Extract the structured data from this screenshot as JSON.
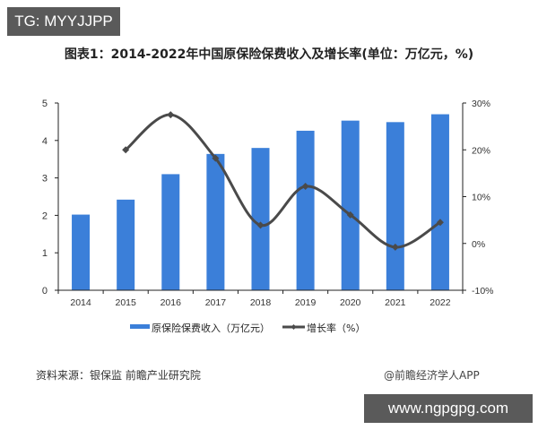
{
  "watermark_top": "TG: MYYJJPP",
  "watermark_bottom": "www.ngpgpg.com",
  "source": "资料来源：银保监 前瞻产业研究院",
  "credit": "@前瞻经济学人APP",
  "chart_data": {
    "type": "bar",
    "title": "图表1：2014-2022年中国原保险保费收入及增长率(单位：万亿元，%)",
    "categories": [
      "2014",
      "2015",
      "2016",
      "2017",
      "2018",
      "2019",
      "2020",
      "2021",
      "2022"
    ],
    "series": [
      {
        "name": "原保险保费收入（万亿元）",
        "type": "bar",
        "axis": "left",
        "color": "#3b7fd9",
        "values": [
          2.02,
          2.42,
          3.1,
          3.64,
          3.8,
          4.26,
          4.53,
          4.49,
          4.7
        ]
      },
      {
        "name": "增长率（%）",
        "type": "line",
        "axis": "right",
        "color": "#4a4a4a",
        "values": [
          null,
          20.0,
          27.5,
          18.2,
          3.9,
          12.2,
          6.1,
          -0.8,
          4.5
        ]
      }
    ],
    "left_axis": {
      "ylim": [
        0,
        5
      ],
      "ticks": [
        "0",
        "1",
        "2",
        "3",
        "4",
        "5"
      ]
    },
    "right_axis": {
      "ylim": [
        -10,
        30
      ],
      "ticks": [
        "-10%",
        "0%",
        "10%",
        "20%",
        "30%"
      ]
    },
    "xlabel": "",
    "ylabel": "",
    "grid": false,
    "legend_position": "bottom"
  }
}
